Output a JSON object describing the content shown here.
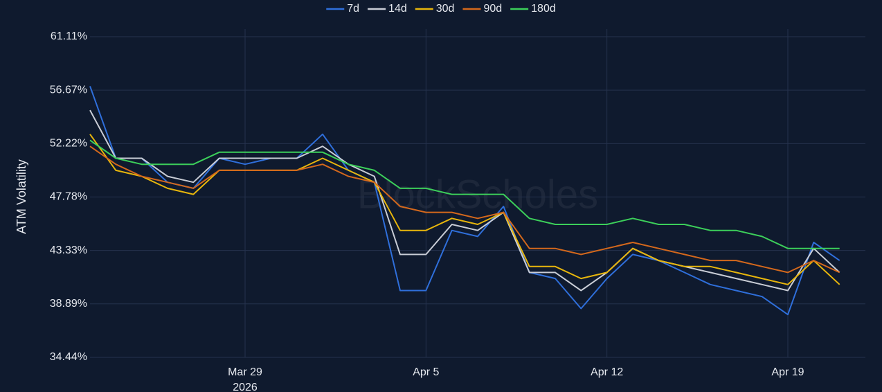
{
  "chart_data": {
    "type": "line",
    "y_label": "ATM Volatility",
    "watermark": "BlockScholes",
    "x": [
      "2026-03-23",
      "2026-03-24",
      "2026-03-25",
      "2026-03-26",
      "2026-03-27",
      "2026-03-28",
      "2026-03-29",
      "2026-03-30",
      "2026-03-31",
      "2026-04-01",
      "2026-04-02",
      "2026-04-03",
      "2026-04-04",
      "2026-04-05",
      "2026-04-06",
      "2026-04-07",
      "2026-04-08",
      "2026-04-09",
      "2026-04-10",
      "2026-04-11",
      "2026-04-12",
      "2026-04-13",
      "2026-04-14",
      "2026-04-15",
      "2026-04-16",
      "2026-04-17",
      "2026-04-18",
      "2026-04-19",
      "2026-04-20",
      "2026-04-21"
    ],
    "xlim": [
      "2026-03-23",
      "2026-04-22"
    ],
    "xticks": [
      {
        "value": "2026-03-29",
        "label": "Mar 29"
      },
      {
        "value": "2026-04-05",
        "label": "Apr 5"
      },
      {
        "value": "2026-04-12",
        "label": "Apr 12"
      },
      {
        "value": "2026-04-19",
        "label": "Apr 19"
      }
    ],
    "x_year_label": "2026",
    "ylim": [
      34.44,
      61.11
    ],
    "yticks": [
      {
        "value": 34.44,
        "label": "34.44%"
      },
      {
        "value": 38.89,
        "label": "38.89%"
      },
      {
        "value": 43.33,
        "label": "43.33%"
      },
      {
        "value": 47.78,
        "label": "47.78%"
      },
      {
        "value": 52.22,
        "label": "52.22%"
      },
      {
        "value": 56.67,
        "label": "56.67%"
      },
      {
        "value": 61.11,
        "label": "61.11%"
      }
    ],
    "grid": true,
    "legend": "top",
    "series": [
      {
        "name": "7d",
        "color": "#2f6fdb",
        "values": [
          57,
          51,
          51,
          49,
          48.5,
          51,
          50.5,
          51,
          51,
          53,
          50,
          49,
          40,
          40,
          45,
          44.5,
          47,
          41.5,
          41,
          38.5,
          41,
          43,
          42.5,
          41.5,
          40.5,
          40,
          39.5,
          38,
          44,
          42.5
        ]
      },
      {
        "name": "14d",
        "color": "#c9cdd6",
        "values": [
          55,
          51,
          51,
          49.5,
          49,
          51,
          51,
          51,
          51,
          52,
          50.5,
          49.5,
          43,
          43,
          45.5,
          45,
          46.5,
          41.5,
          41.5,
          40,
          41.5,
          43.5,
          42.5,
          42,
          41.5,
          41,
          40.5,
          40,
          43.5,
          41.5
        ]
      },
      {
        "name": "30d",
        "color": "#e8b60c",
        "values": [
          53,
          50,
          49.5,
          48.5,
          48,
          50,
          50,
          50,
          50,
          51,
          50,
          49,
          45,
          45,
          46,
          45.5,
          46.5,
          42,
          42,
          41,
          41.5,
          43.5,
          42.5,
          42,
          42,
          41.5,
          41,
          40.5,
          42.5,
          40.5
        ]
      },
      {
        "name": "90d",
        "color": "#d4681c",
        "values": [
          52,
          50.5,
          49.5,
          49,
          48.5,
          50,
          50,
          50,
          50,
          50.5,
          49.5,
          49,
          47,
          46.5,
          46.5,
          46,
          46.5,
          43.5,
          43.5,
          43,
          43.5,
          44,
          43.5,
          43,
          42.5,
          42.5,
          42,
          41.5,
          42.5,
          41.5
        ]
      },
      {
        "name": "180d",
        "color": "#3ccf5a",
        "values": [
          52.5,
          51,
          50.5,
          50.5,
          50.5,
          51.5,
          51.5,
          51.5,
          51.5,
          51.5,
          50.5,
          50,
          48.5,
          48.5,
          48,
          48,
          48,
          46,
          45.5,
          45.5,
          45.5,
          46,
          45.5,
          45.5,
          45,
          45,
          44.5,
          43.5,
          43.5,
          43.5
        ]
      }
    ]
  }
}
